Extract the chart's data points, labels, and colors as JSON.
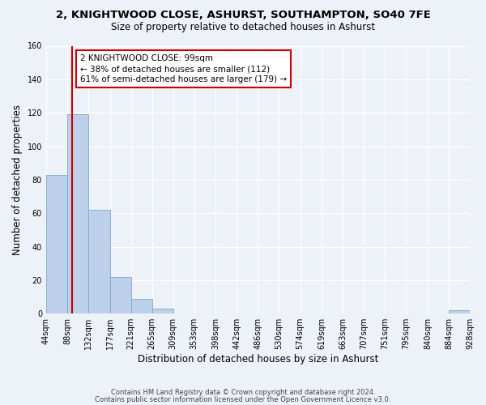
{
  "title": "2, KNIGHTWOOD CLOSE, ASHURST, SOUTHAMPTON, SO40 7FE",
  "subtitle": "Size of property relative to detached houses in Ashurst",
  "xlabel": "Distribution of detached houses by size in Ashurst",
  "ylabel": "Number of detached properties",
  "bin_edges": [
    44,
    88,
    132,
    177,
    221,
    265,
    309,
    353,
    398,
    442,
    486,
    530,
    574,
    619,
    663,
    707,
    751,
    795,
    840,
    884,
    928
  ],
  "bin_labels": [
    "44sqm",
    "88sqm",
    "132sqm",
    "177sqm",
    "221sqm",
    "265sqm",
    "309sqm",
    "353sqm",
    "398sqm",
    "442sqm",
    "486sqm",
    "530sqm",
    "574sqm",
    "619sqm",
    "663sqm",
    "707sqm",
    "751sqm",
    "795sqm",
    "840sqm",
    "884sqm",
    "928sqm"
  ],
  "counts": [
    83,
    119,
    62,
    22,
    9,
    3,
    0,
    0,
    0,
    0,
    0,
    0,
    0,
    0,
    0,
    0,
    0,
    0,
    0,
    2
  ],
  "bar_color": "#bdd0e9",
  "bar_edge_color": "#7aa8cf",
  "property_size": 99,
  "vline_color": "#cc0000",
  "ylim": [
    0,
    160
  ],
  "yticks": [
    0,
    20,
    40,
    60,
    80,
    100,
    120,
    140,
    160
  ],
  "annotation_text": "2 KNIGHTWOOD CLOSE: 99sqm\n← 38% of detached houses are smaller (112)\n61% of semi-detached houses are larger (179) →",
  "annotation_box_color": "#ffffff",
  "annotation_box_edge": "#cc0000",
  "footer_line1": "Contains HM Land Registry data © Crown copyright and database right 2024.",
  "footer_line2": "Contains public sector information licensed under the Open Government Licence v3.0.",
  "background_color": "#edf1f8",
  "plot_background": "#edf1f8"
}
